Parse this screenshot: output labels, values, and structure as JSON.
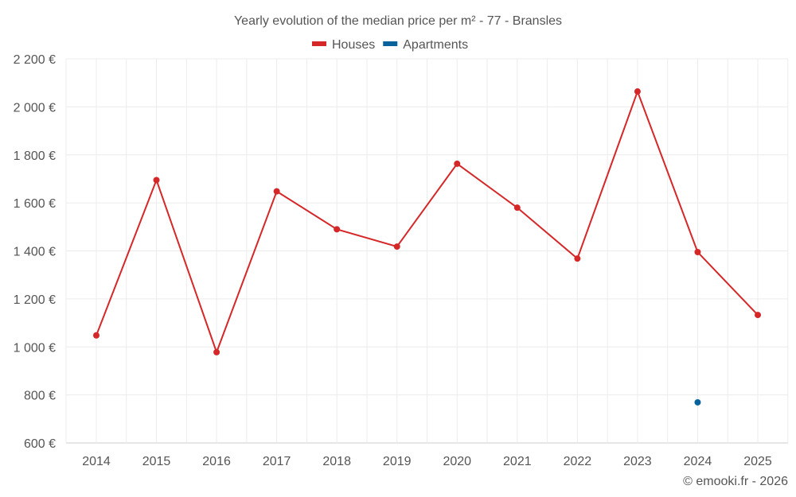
{
  "chart_data": {
    "type": "line",
    "title": "Yearly evolution of the median price per m² - 77 - Bransles",
    "categories": [
      "2014",
      "2015",
      "2016",
      "2017",
      "2018",
      "2019",
      "2020",
      "2021",
      "2022",
      "2023",
      "2024",
      "2025"
    ],
    "series": [
      {
        "name": "Houses",
        "color": "#d62728",
        "values": [
          1048,
          1695,
          978,
          1648,
          1490,
          1418,
          1763,
          1580,
          1368,
          2064,
          1395,
          1133
        ]
      },
      {
        "name": "Apartments",
        "color": "#08639c",
        "values": [
          null,
          null,
          null,
          null,
          null,
          null,
          null,
          null,
          null,
          null,
          769,
          null
        ]
      }
    ],
    "yticks": [
      "600 €",
      "800 €",
      "1 000 €",
      "1 200 €",
      "1 400 €",
      "1 600 €",
      "1 800 €",
      "2 000 €",
      "2 200 €"
    ],
    "ylim": [
      600,
      2200
    ],
    "xlabel": "",
    "ylabel": "",
    "grid": true,
    "legend": "top-center"
  },
  "credit": "© emooki.fr - 2026"
}
